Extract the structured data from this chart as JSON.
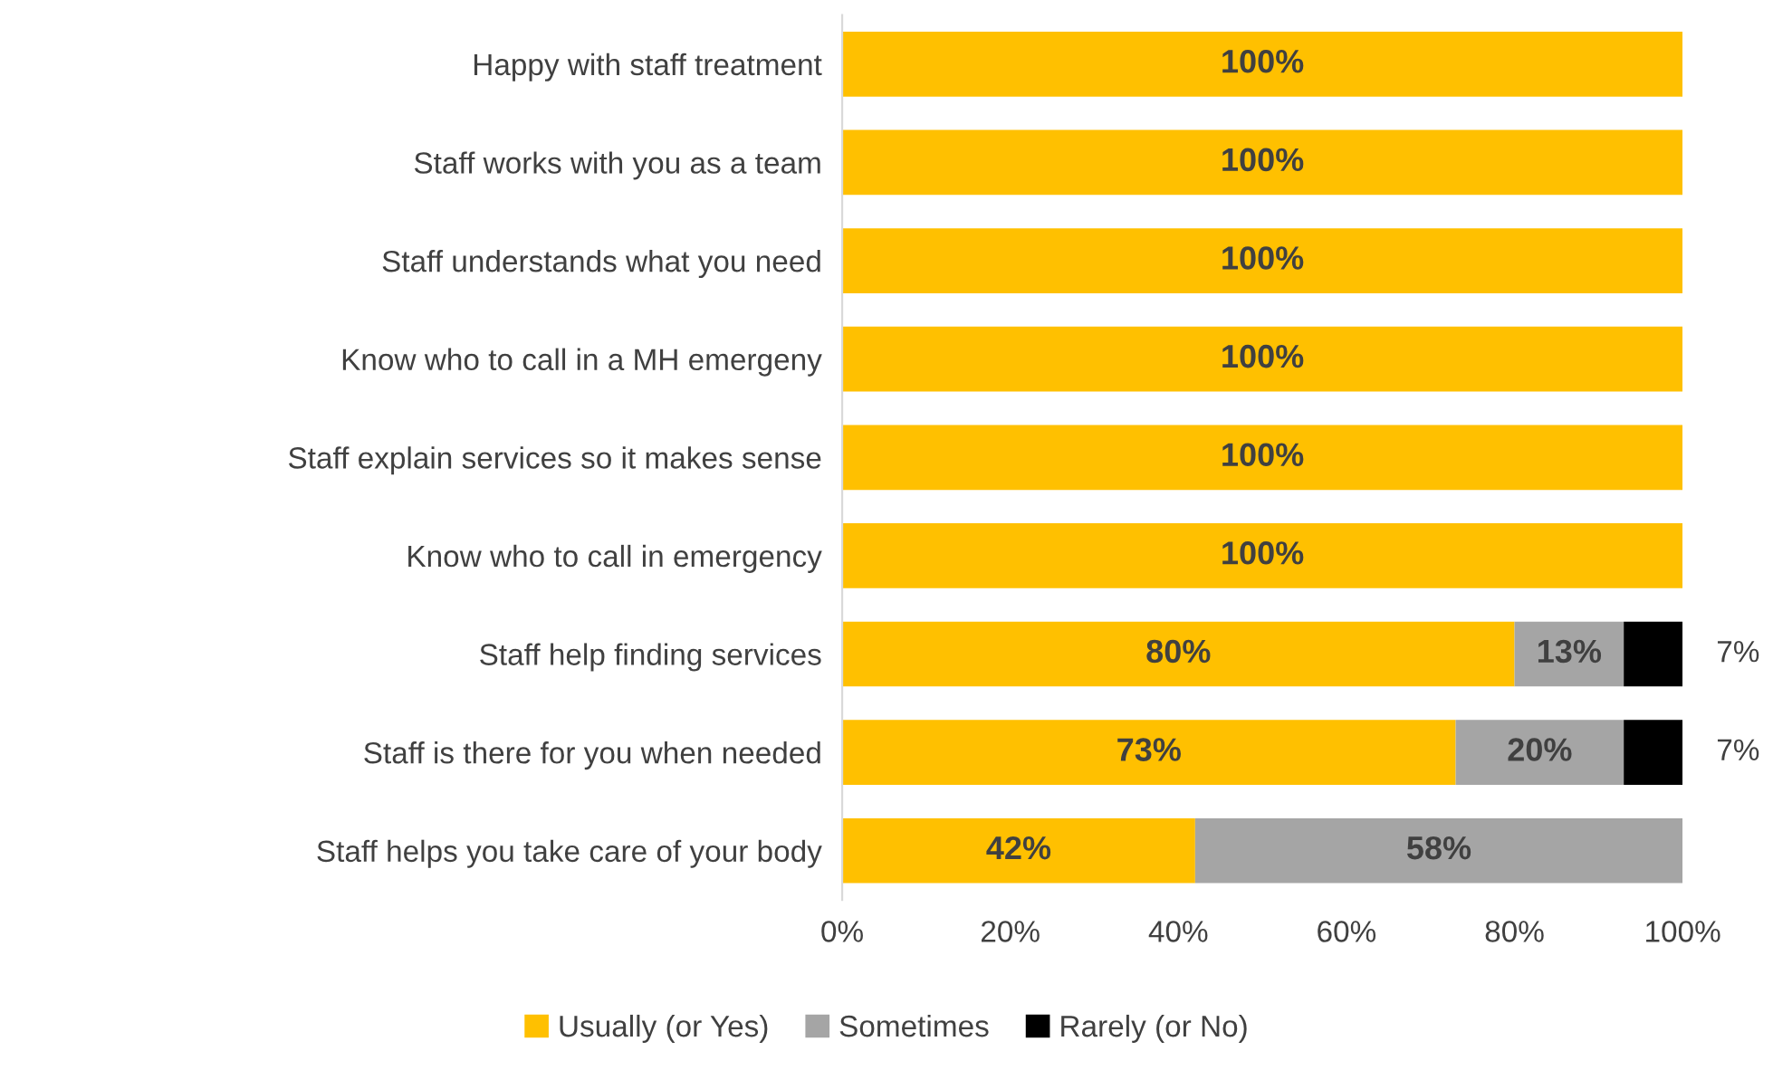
{
  "chart_data": {
    "type": "bar",
    "orientation": "horizontal",
    "stacked": true,
    "categories": [
      "Happy with staff treatment",
      "Staff works with you as a team",
      "Staff understands what you need",
      "Know who to call in a MH emergeny",
      "Staff explain services so it makes sense",
      "Know who to call in emergency",
      "Staff help finding services",
      "Staff is there for you when needed",
      "Staff helps you take care of your body"
    ],
    "series": [
      {
        "name": "Usually (or Yes)",
        "color": "#ffc000",
        "values": [
          100,
          100,
          100,
          100,
          100,
          100,
          80,
          73,
          42
        ],
        "value_labels": [
          "100%",
          "100%",
          "100%",
          "100%",
          "100%",
          "100%",
          "80%",
          "73%",
          "42%"
        ]
      },
      {
        "name": "Sometimes",
        "color": "#a5a5a5",
        "values": [
          null,
          null,
          null,
          null,
          null,
          null,
          13,
          20,
          58
        ],
        "value_labels": [
          null,
          null,
          null,
          null,
          null,
          null,
          "13%",
          "20%",
          "58%"
        ]
      },
      {
        "name": "Rarely (or No)",
        "color": "#000000",
        "values": [
          null,
          null,
          null,
          null,
          null,
          null,
          7,
          7,
          null
        ],
        "value_labels": [
          null,
          null,
          null,
          null,
          null,
          null,
          "7%",
          "7%",
          null
        ]
      }
    ],
    "xlim": [
      0,
      100
    ],
    "xticks": [
      {
        "value": 0,
        "label": "0%"
      },
      {
        "value": 20,
        "label": "20%"
      },
      {
        "value": 40,
        "label": "40%"
      },
      {
        "value": 60,
        "label": "60%"
      },
      {
        "value": 80,
        "label": "80%"
      },
      {
        "value": 100,
        "label": "100%"
      }
    ],
    "grid": false,
    "legend": "bottom"
  }
}
